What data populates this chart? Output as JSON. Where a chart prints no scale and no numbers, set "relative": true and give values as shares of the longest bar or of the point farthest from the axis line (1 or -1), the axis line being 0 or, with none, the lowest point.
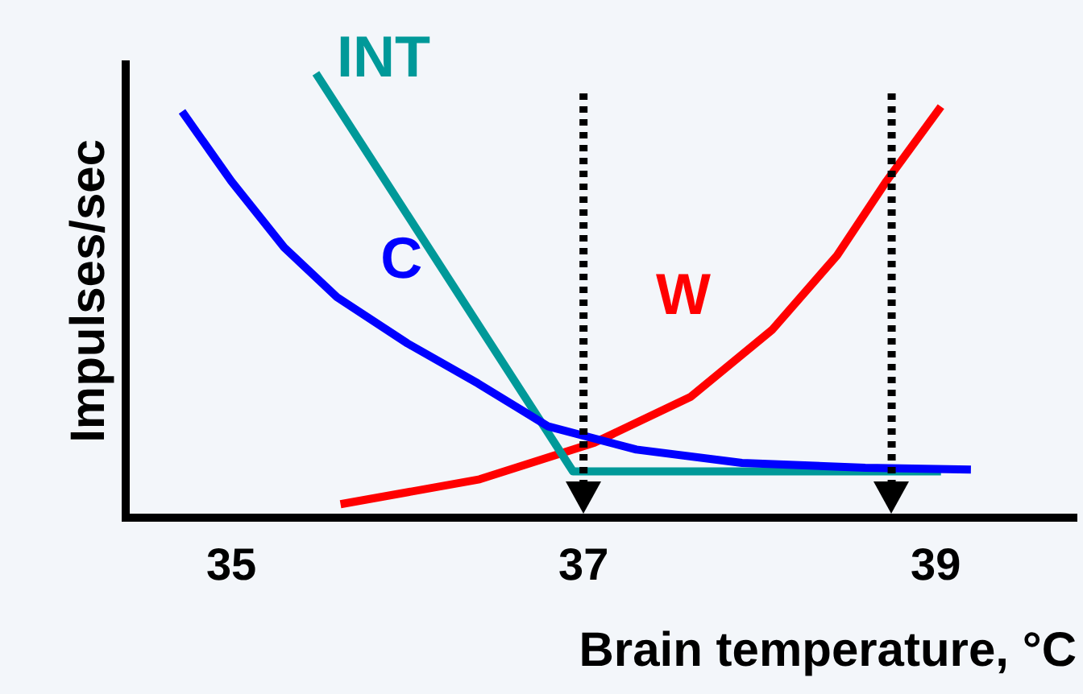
{
  "chart_data": {
    "type": "line",
    "xlabel": "Brain temperature, °C",
    "ylabel": "Impulses/sec",
    "relative": true,
    "xlim": [
      34.4,
      39.8
    ],
    "xticks": [
      35,
      37,
      39
    ],
    "grid": false,
    "legend": false,
    "marker": "none",
    "line_style": "solid",
    "series": [
      {
        "name": "C",
        "color": "#0000ff",
        "x": [
          34.72,
          35.0,
          35.3,
          35.6,
          36.0,
          36.4,
          36.8,
          37.3,
          37.9,
          38.6,
          39.2
        ],
        "values": [
          0.914,
          0.757,
          0.608,
          0.496,
          0.392,
          0.302,
          0.205,
          0.153,
          0.123,
          0.112,
          0.108
        ]
      },
      {
        "name": "INT",
        "color": "#009999",
        "x": [
          35.48,
          36.94,
          39.03
        ],
        "values": [
          1.0,
          0.104,
          0.104
        ]
      },
      {
        "name": "W",
        "color": "#ff0000",
        "x": [
          35.62,
          36.41,
          37.06,
          37.61,
          38.07,
          38.44,
          38.72,
          39.03
        ],
        "values": [
          0.03,
          0.086,
          0.168,
          0.272,
          0.422,
          0.59,
          0.757,
          0.925
        ]
      }
    ],
    "ref_lines": [
      {
        "axis": "x",
        "value": 37,
        "color": "#000000",
        "line_style": "dotted"
      },
      {
        "axis": "x",
        "value": 38.75,
        "color": "#000000",
        "line_style": "dotted"
      }
    ]
  }
}
